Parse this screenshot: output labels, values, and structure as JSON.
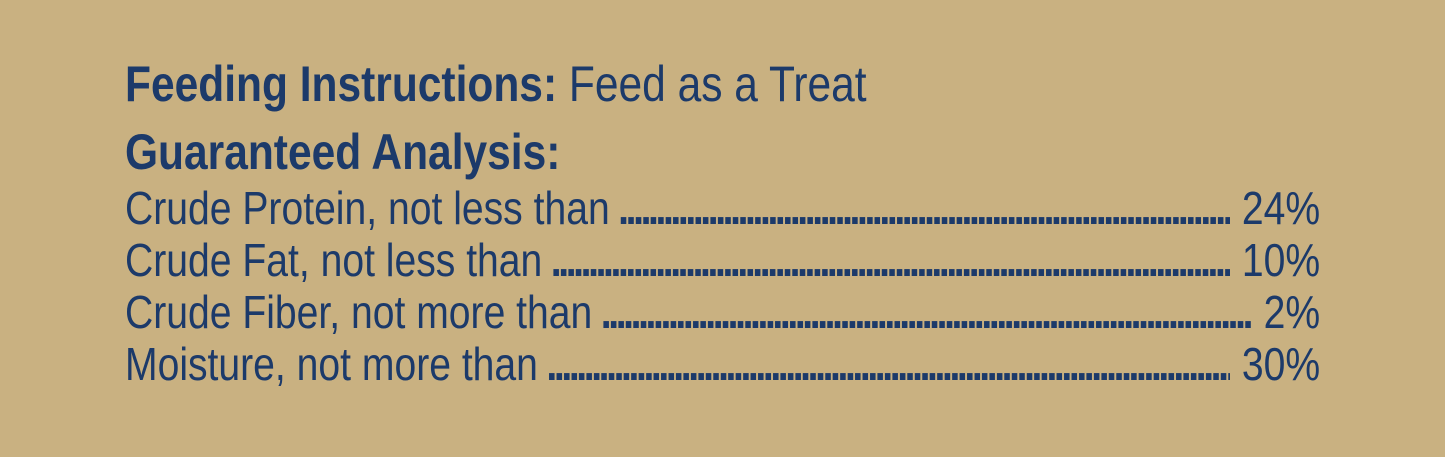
{
  "colors": {
    "background": "#c9b181",
    "text": "#1c3a6a"
  },
  "feeding": {
    "title": "Feeding Instructions:",
    "value": "Feed as a Treat"
  },
  "analysis": {
    "title": "Guaranteed Analysis:",
    "leader_dots": "........................................................................................................................",
    "rows": [
      {
        "label": "Crude Protein, not less than",
        "value": "24%"
      },
      {
        "label": "Crude Fat, not less than",
        "value": "10%"
      },
      {
        "label": "Crude Fiber, not more than",
        "value": "2%"
      },
      {
        "label": "Moisture, not more than",
        "value": "30%"
      }
    ]
  }
}
